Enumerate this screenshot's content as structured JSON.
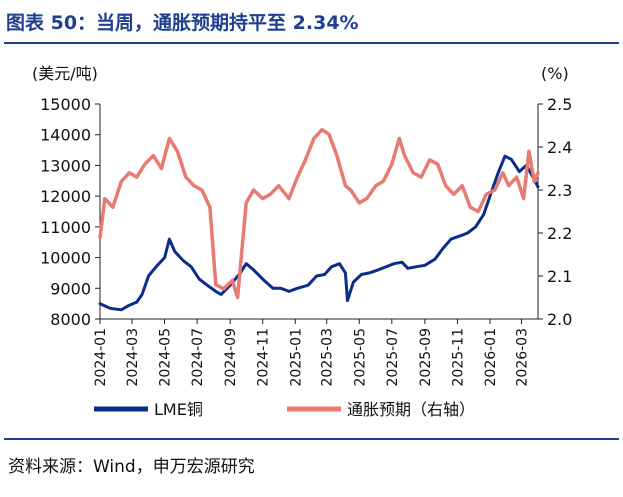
{
  "header": {
    "title": "图表 50：当周，通胀预期持平至 2.34%"
  },
  "footer": {
    "source": "资料来源：Wind，申万宏源研究"
  },
  "colors": {
    "title": "#1f3f8f",
    "lme": "#0a2d8c",
    "inflation": "#e87a72",
    "axis": "#1f3f8f"
  },
  "chart_data": {
    "type": "line",
    "title": "",
    "left_axis": {
      "unit_label": "(美元/吨)",
      "ylim": [
        8000,
        15000
      ],
      "ticks": [
        8000,
        9000,
        10000,
        11000,
        12000,
        13000,
        14000,
        15000
      ]
    },
    "right_axis": {
      "unit_label": "(%)",
      "ylim": [
        2.0,
        2.5
      ],
      "ticks": [
        "2.0",
        "2.1",
        "2.2",
        "2.3",
        "2.4",
        "2.5"
      ]
    },
    "x_axis": {
      "range": [
        "2024-01",
        "2026-04"
      ],
      "ticks": [
        "2024-01",
        "2024-03",
        "2024-05",
        "2024-07",
        "2024-09",
        "2024-11",
        "2025-01",
        "2025-03",
        "2025-05",
        "2025-07",
        "2025-09",
        "2025-11",
        "2026-01",
        "2026-03"
      ]
    },
    "legend": {
      "placement": "bottom"
    },
    "series": [
      {
        "name": "LME铜",
        "axis": "left",
        "x": [
          "2024-01-01",
          "2024-01-20",
          "2024-02-10",
          "2024-02-25",
          "2024-03-10",
          "2024-03-20",
          "2024-04-01",
          "2024-04-15",
          "2024-05-01",
          "2024-05-10",
          "2024-05-20",
          "2024-06-05",
          "2024-06-20",
          "2024-07-05",
          "2024-07-20",
          "2024-08-05",
          "2024-08-15",
          "2024-09-01",
          "2024-09-20",
          "2024-10-01",
          "2024-10-15",
          "2024-11-01",
          "2024-11-20",
          "2024-12-05",
          "2024-12-20",
          "2025-01-05",
          "2025-01-25",
          "2025-02-10",
          "2025-02-25",
          "2025-03-10",
          "2025-03-25",
          "2025-04-05",
          "2025-04-09",
          "2025-04-20",
          "2025-05-05",
          "2025-05-20",
          "2025-06-05",
          "2025-06-20",
          "2025-07-05",
          "2025-07-20",
          "2025-07-31",
          "2025-08-15",
          "2025-09-01",
          "2025-09-20",
          "2025-10-05",
          "2025-10-20",
          "2025-11-05",
          "2025-11-20",
          "2025-12-05",
          "2025-12-20",
          "2026-01-01",
          "2026-01-15",
          "2026-01-29",
          "2026-02-10",
          "2026-02-25",
          "2026-03-10",
          "2026-03-20",
          "2026-04-01"
        ],
        "values": [
          8500,
          8350,
          8300,
          8450,
          8550,
          8800,
          9400,
          9700,
          10000,
          10600,
          10200,
          9900,
          9700,
          9300,
          9100,
          8900,
          8800,
          9100,
          9500,
          9800,
          9600,
          9300,
          9000,
          9000,
          8900,
          9000,
          9100,
          9400,
          9450,
          9700,
          9800,
          9500,
          8600,
          9200,
          9450,
          9500,
          9600,
          9700,
          9800,
          9850,
          9650,
          9700,
          9750,
          9950,
          10300,
          10600,
          10700,
          10800,
          11000,
          11400,
          12000,
          12700,
          13300,
          13200,
          12800,
          13000,
          12700,
          12300
        ]
      },
      {
        "name": "通胀预期（右轴）",
        "axis": "right",
        "x": [
          "2024-01-01",
          "2024-01-10",
          "2024-01-25",
          "2024-02-10",
          "2024-02-25",
          "2024-03-10",
          "2024-03-25",
          "2024-04-10",
          "2024-04-25",
          "2024-05-10",
          "2024-05-25",
          "2024-06-10",
          "2024-06-25",
          "2024-07-10",
          "2024-07-25",
          "2024-08-05",
          "2024-08-20",
          "2024-09-05",
          "2024-09-15",
          "2024-10-01",
          "2024-10-15",
          "2024-11-01",
          "2024-11-15",
          "2024-12-01",
          "2024-12-20",
          "2025-01-05",
          "2025-01-20",
          "2025-02-05",
          "2025-02-20",
          "2025-03-05",
          "2025-03-20",
          "2025-04-05",
          "2025-04-15",
          "2025-05-01",
          "2025-05-15",
          "2025-06-01",
          "2025-06-15",
          "2025-07-01",
          "2025-07-15",
          "2025-07-25",
          "2025-08-10",
          "2025-08-25",
          "2025-09-10",
          "2025-09-25",
          "2025-10-10",
          "2025-10-25",
          "2025-11-10",
          "2025-11-25",
          "2025-12-10",
          "2025-12-25",
          "2026-01-10",
          "2026-01-25",
          "2026-02-05",
          "2026-02-20",
          "2026-03-05",
          "2026-03-15",
          "2026-03-25",
          "2026-04-01"
        ],
        "values": [
          2.19,
          2.28,
          2.26,
          2.32,
          2.34,
          2.33,
          2.36,
          2.38,
          2.35,
          2.42,
          2.39,
          2.33,
          2.31,
          2.3,
          2.26,
          2.08,
          2.07,
          2.09,
          2.05,
          2.27,
          2.3,
          2.28,
          2.29,
          2.31,
          2.28,
          2.33,
          2.37,
          2.42,
          2.44,
          2.43,
          2.38,
          2.31,
          2.3,
          2.27,
          2.28,
          2.31,
          2.32,
          2.36,
          2.42,
          2.38,
          2.34,
          2.33,
          2.37,
          2.36,
          2.31,
          2.29,
          2.31,
          2.26,
          2.25,
          2.29,
          2.3,
          2.34,
          2.31,
          2.33,
          2.28,
          2.39,
          2.32,
          2.34
        ]
      }
    ]
  }
}
